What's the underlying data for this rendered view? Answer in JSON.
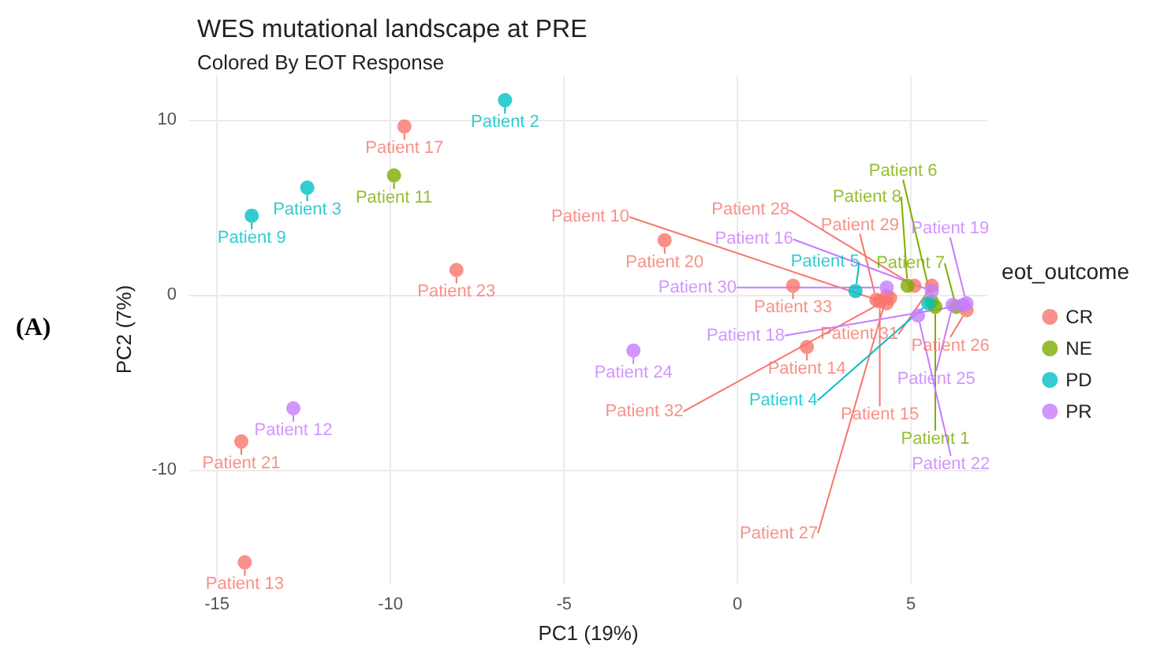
{
  "chart_data": {
    "type": "scatter",
    "title": "WES mutational landscape at PRE",
    "subtitle": "Colored By EOT Response",
    "xlabel": "PC1 (19%)",
    "ylabel": "PC2 (7%)",
    "legend_title": "eot_outcome",
    "legend": "right",
    "grid": true,
    "marker": "circle",
    "xlim": [
      -15.8,
      7.2
    ],
    "ylim": [
      -16.5,
      12.5
    ],
    "xticks": [
      -15,
      -10,
      -5,
      0,
      5
    ],
    "yticks": [
      -10,
      0,
      10
    ],
    "annotations": [
      "(A)"
    ],
    "series": [
      {
        "name": "CR",
        "color": "#f8766d",
        "x": [
          -9.6,
          -8.1,
          -2.1,
          -14.3,
          -14.2,
          1.6,
          2.0,
          5.1,
          5.6,
          4.4,
          4.0,
          4.1,
          4.3,
          4.3,
          6.6
        ],
        "values": [
          9.6,
          1.4,
          3.1,
          -8.4,
          -15.3,
          0.5,
          -3.0,
          0.5,
          0.5,
          -0.2,
          -0.3,
          -0.4,
          -0.5,
          -0.1,
          -0.9
        ],
        "value_labels": [
          "Patient 17",
          "Patient 23",
          "Patient 20",
          "Patient 21",
          "Patient 13",
          "Patient 33",
          "Patient 14",
          "Patient 28",
          "Patient 31",
          "Patient 32",
          "Patient 29",
          "Patient 15",
          "Patient 10",
          "Patient 27",
          "Patient 26"
        ]
      },
      {
        "name": "NE",
        "color": "#7cae00",
        "x": [
          -9.9,
          4.9,
          5.6,
          5.7,
          6.3
        ],
        "values": [
          6.8,
          0.5,
          -0.4,
          -0.7,
          -0.7
        ],
        "value_labels": [
          "Patient 11",
          "Patient 8",
          "Patient 6",
          "Patient 1",
          "Patient 7"
        ]
      },
      {
        "name": "PD",
        "color": "#00bfc4",
        "x": [
          -6.7,
          -12.4,
          -14.0,
          3.4,
          5.5
        ],
        "values": [
          11.1,
          6.1,
          4.5,
          0.2,
          -0.5
        ],
        "value_labels": [
          "Patient 2",
          "Patient 3",
          "Patient 9",
          "Patient 5",
          "Patient 4"
        ]
      },
      {
        "name": "PR",
        "color": "#c77cff",
        "x": [
          -3.0,
          -12.8,
          4.3,
          5.6,
          6.6,
          6.5,
          5.2,
          6.2
        ],
        "values": [
          -3.2,
          -6.5,
          0.4,
          0.2,
          -0.5,
          -0.6,
          -1.2,
          -0.6
        ],
        "value_labels": [
          "Patient 24",
          "Patient 12",
          "Patient 30",
          "Patient 16",
          "Patient 19",
          "Patient 18",
          "Patient 22",
          "Patient 25"
        ]
      }
    ]
  }
}
